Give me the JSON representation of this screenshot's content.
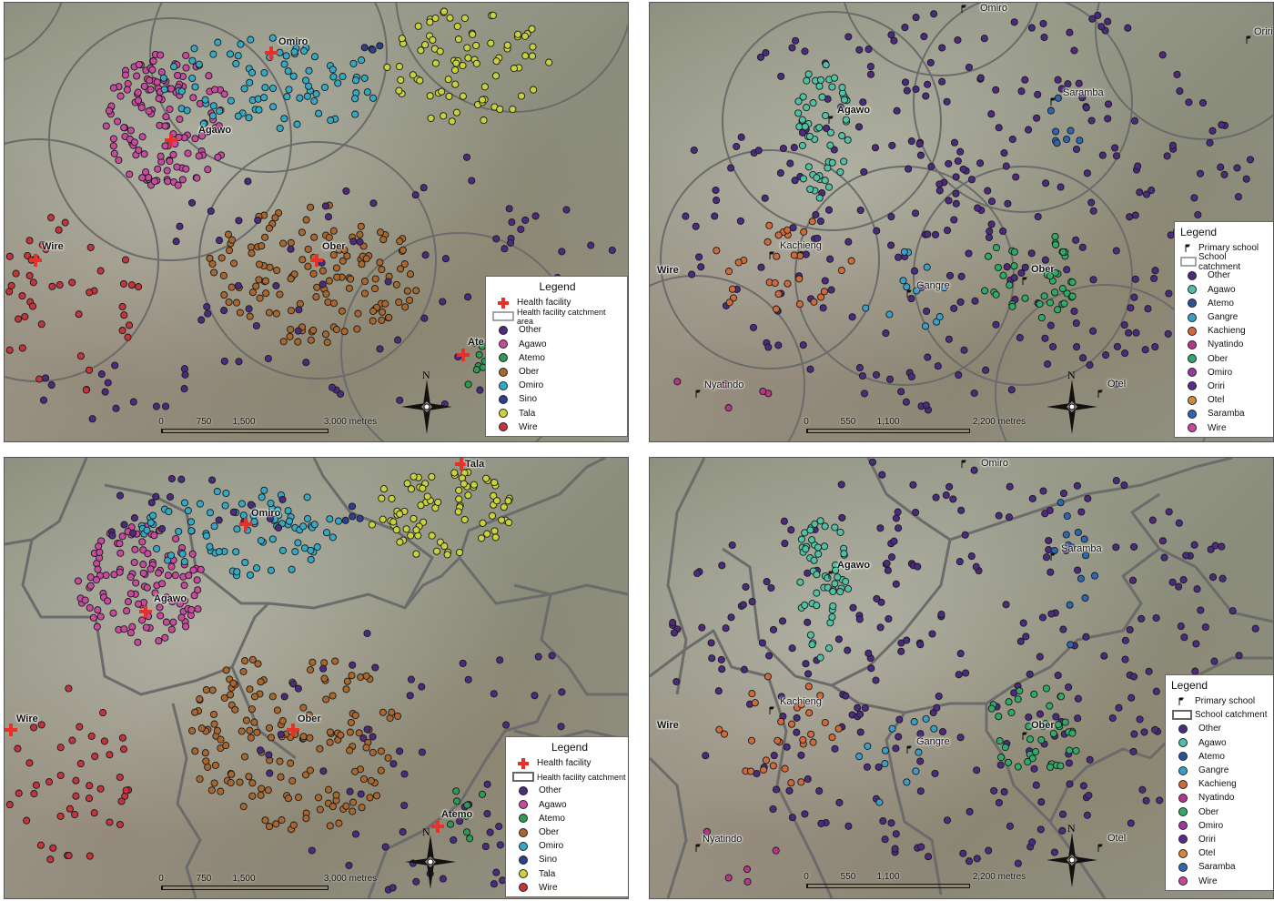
{
  "colors": {
    "Other": "#4b2a7f",
    "Agawo": "#c64b9e",
    "Atemo": "#2e9a57",
    "Ober": "#a8672f",
    "Omiro": "#34a9c4",
    "Sino": "#2d3f8f",
    "Tala": "#c9d23a",
    "Wire": "#c4343a",
    "AgawoSchool": "#4fc1a5",
    "AtemoSchool": "#2e4f9a",
    "Gangre": "#3aa0c8",
    "Kachieng": "#d06a3a",
    "Nyatindo": "#b5378a",
    "OberSchool": "#2eaa6a",
    "OmiroSchool": "#9a3aa0",
    "Oriri": "#5a2a8a",
    "Otel": "#d08a3a",
    "Saramba": "#2e66b0",
    "WireSchool": "#c8479a"
  },
  "panel1": {
    "places": {
      "omiro": "Omiro",
      "agawo": "Agawo",
      "wire": "Wire",
      "ober": "Ober",
      "atemo": "Ate"
    },
    "legend": {
      "title": "Legend",
      "symbol_rows": [
        "Health facility",
        "Health facility catchment area"
      ],
      "items": [
        "Other",
        "Agawo",
        "Atemo",
        "Ober",
        "Omiro",
        "Sino",
        "Tala",
        "Wire"
      ]
    },
    "scale": {
      "labels": [
        "0",
        "750",
        "1,500",
        "3,000 metres"
      ]
    },
    "north": "N"
  },
  "panel2": {
    "places": {
      "omiro": "Omiro",
      "oriri": "Oriri",
      "agawo": "Agawo",
      "saramba": "Saramba",
      "kachieng": "Kachieng",
      "wire": "Wire",
      "gangre": "Gangre",
      "ober": "Ober",
      "nyatindo": "Nyatindo",
      "otel": "Otel"
    },
    "legend": {
      "title": "Legend",
      "symbol_rows": [
        "Primary school",
        "School catchment"
      ],
      "items": [
        "Other",
        "Agawo",
        "Atemo",
        "Gangre",
        "Kachieng",
        "Nyatindo",
        "Ober",
        "Omiro",
        "Oriri",
        "Otel",
        "Saramba",
        "Wire"
      ]
    },
    "scale": {
      "labels": [
        "0",
        "550",
        "1,100",
        "2,200 metres"
      ]
    },
    "north": "N"
  },
  "panel3": {
    "places": {
      "tala": "Tala",
      "omiro": "Omiro",
      "agawo": "Agawo",
      "wire": "Wire",
      "ober": "Ober",
      "atemo": "Atemo"
    },
    "legend": {
      "title": "Legend",
      "symbol_rows": [
        "Health facility",
        "Health facility catchment"
      ],
      "items": [
        "Other",
        "Agawo",
        "Atemo",
        "Ober",
        "Omiro",
        "Sino",
        "Tala",
        "Wire"
      ]
    },
    "scale": {
      "labels": [
        "0",
        "750",
        "1,500",
        "3,000 metres"
      ]
    },
    "north": "N"
  },
  "panel4": {
    "places": {
      "omiro": "Omiro",
      "agawo": "Agawo",
      "saramba": "Saramba",
      "kachieng": "Kachieng",
      "wire": "Wire",
      "gangre": "Gangre",
      "ober": "Ober",
      "nyatindo": "Nyatindo",
      "otel": "Otel"
    },
    "legend": {
      "title": "Legend",
      "symbol_rows": [
        "Primary school",
        "School catchment"
      ],
      "items": [
        "Other",
        "Agawo",
        "Atemo",
        "Gangre",
        "Kachieng",
        "Nyatindo",
        "Ober",
        "Omiro",
        "Oriri",
        "Otel",
        "Saramba",
        "Wire"
      ]
    },
    "scale": {
      "labels": [
        "0",
        "550",
        "1,100",
        "2,200 metres"
      ]
    },
    "north": "N"
  }
}
